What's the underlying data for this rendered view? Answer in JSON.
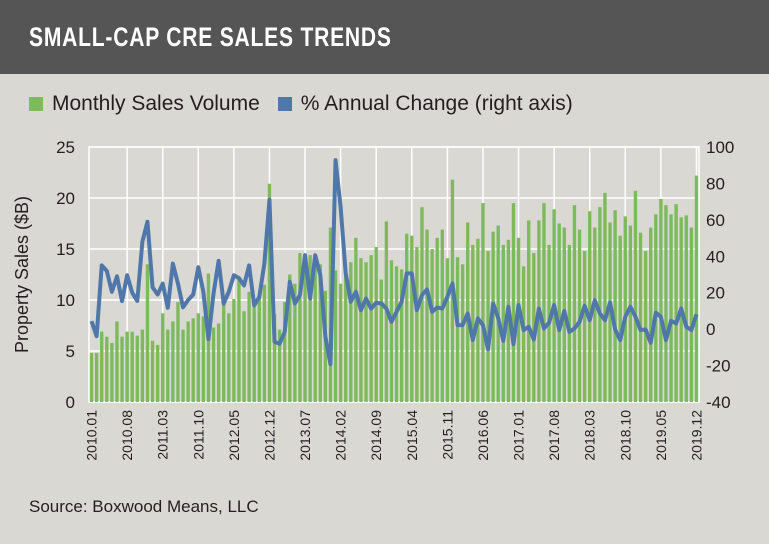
{
  "title": "SMALL-CAP CRE SALES TRENDS",
  "source": "Source: Boxwood Means, LLC",
  "colors": {
    "header": "#555555",
    "background": "#d9d8d2",
    "bars": "#7dba5c",
    "line": "#4f77aa"
  },
  "chart_data": {
    "type": "bar+line",
    "title": "SMALL-CAP CRE SALES TRENDS",
    "ylabel": "Property Sales ($B)",
    "ylim": [
      0,
      25
    ],
    "yticks": [
      "0",
      "5",
      "10",
      "15",
      "20",
      "25"
    ],
    "y2lim": [
      -40,
      100
    ],
    "y2ticks": [
      "-40",
      "-20",
      "0",
      "20",
      "40",
      "60",
      "80",
      "100"
    ],
    "grid": true,
    "legend_position": "top",
    "start": "2010.01",
    "end": "2019.12",
    "frequency": "monthly",
    "xticks": [
      "2010.01",
      "2010.08",
      "2011.03",
      "2011.10",
      "2012.05",
      "2012.12",
      "2013.07",
      "2014.02",
      "2014.09",
      "2015.04",
      "2015.11",
      "2016.06",
      "2017.01",
      "2017.08",
      "2018.03",
      "2018.10",
      "2019.05",
      "2019.12"
    ],
    "series": [
      {
        "name": "Monthly Sales Volume",
        "type": "bar",
        "axis": "left",
        "color": "#7dba5c",
        "values": [
          4.8,
          4.8,
          6.9,
          6.4,
          5.8,
          7.9,
          6.4,
          6.9,
          6.9,
          6.5,
          7.1,
          13.5,
          6.0,
          5.6,
          8.7,
          7.1,
          7.9,
          9.8,
          7.1,
          7.9,
          8.2,
          8.7,
          8.4,
          12.6,
          7.3,
          7.7,
          9.8,
          8.7,
          10.1,
          12.0,
          8.9,
          10.8,
          9.3,
          10.5,
          11.5,
          21.4,
          8.6,
          7.1,
          9.8,
          12.5,
          11.6,
          14.6,
          14.5,
          14.4,
          13.5,
          13.5,
          10.9,
          17.1,
          12.9,
          11.6,
          12.6,
          13.7,
          16.1,
          14.1,
          13.7,
          14.4,
          15.2,
          12.0,
          17.7,
          13.9,
          13.3,
          13.0,
          16.5,
          16.3,
          15.2,
          19.1,
          16.9,
          15.0,
          16.1,
          16.9,
          14.1,
          21.8,
          14.2,
          13.5,
          17.6,
          15.4,
          16.0,
          19.5,
          14.8,
          16.7,
          17.3,
          15.4,
          15.9,
          19.5,
          16.1,
          13.3,
          17.8,
          14.6,
          17.8,
          19.5,
          15.4,
          18.9,
          17.5,
          17.1,
          15.4,
          19.3,
          16.9,
          14.8,
          18.7,
          17.1,
          19.1,
          20.5,
          17.6,
          18.8,
          16.3,
          18.2,
          17.3,
          20.7,
          16.6,
          14.8,
          17.1,
          18.4,
          19.9,
          19.3,
          18.4,
          19.4,
          18.1,
          18.3,
          17.1,
          22.2
        ]
      },
      {
        "name": "% Annual Change (right axis)",
        "type": "line",
        "axis": "right",
        "color": "#4f77aa",
        "values": [
          4.4,
          -3.9,
          35,
          32,
          20.5,
          29,
          15.4,
          29.6,
          20,
          15.5,
          48,
          59,
          23,
          19,
          25,
          11.7,
          36,
          25,
          12,
          16,
          19,
          34,
          20.5,
          -5.5,
          19.7,
          37.5,
          14,
          20.5,
          29.6,
          28,
          24,
          35,
          13,
          17.7,
          36,
          71,
          -7,
          -8,
          -1.5,
          26,
          14.1,
          18.7,
          40.6,
          16.8,
          40.6,
          29.7,
          -4.2,
          -19.2,
          92.8,
          67,
          30.6,
          15,
          20.5,
          10.4,
          16.8,
          11.3,
          14.5,
          14.1,
          11.3,
          4.0,
          9.5,
          15,
          30.6,
          30.6,
          10.4,
          18.7,
          21.8,
          9.5,
          11.9,
          11.3,
          17.8,
          25.1,
          2.2,
          2.2,
          8.6,
          -6,
          5.9,
          2.2,
          -11,
          14.1,
          6,
          -6.4,
          12.3,
          -8.2,
          13.2,
          -0.5,
          1.3,
          -5.7,
          11.3,
          0.4,
          3.5,
          13.2,
          -0.5,
          10,
          -1.5,
          0.4,
          4,
          12.8,
          4.9,
          15.9,
          8.6,
          4.9,
          14.6,
          -0.2,
          -6,
          6.8,
          12.3,
          6.8,
          -0.5,
          -0.2,
          -7.5,
          9,
          6.8,
          -6,
          4.6,
          3.1,
          11.3,
          1.3,
          -0.5,
          8.2
        ]
      }
    ]
  }
}
